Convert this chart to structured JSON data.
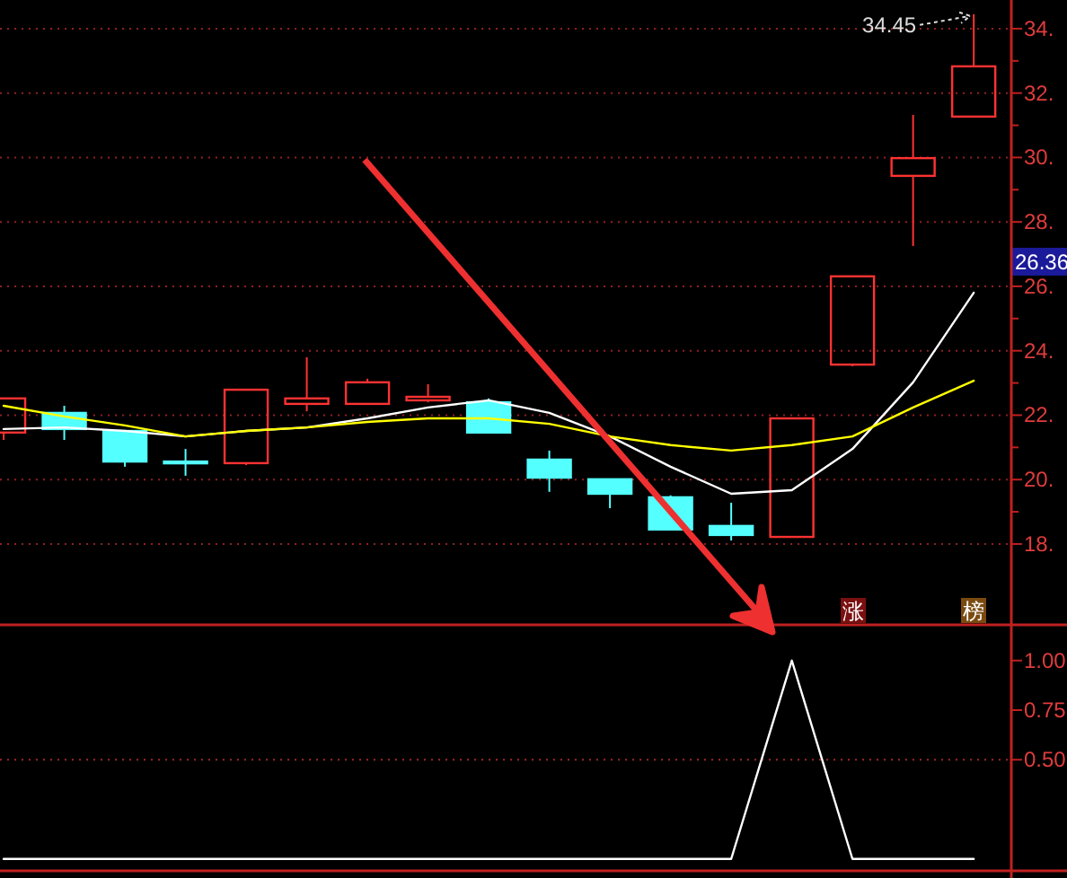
{
  "chart_data": [
    {
      "type": "candlestick",
      "categories": [
        null,
        null,
        null,
        null,
        null,
        null,
        null,
        null,
        null,
        null,
        null,
        null,
        null,
        null,
        null,
        null,
        null
      ],
      "ohlc": [
        [
          21.46,
          22.52,
          21.23,
          22.52
        ],
        [
          22.07,
          22.29,
          21.23,
          21.57
        ],
        [
          21.51,
          21.51,
          20.4,
          20.56
        ],
        [
          20.56,
          20.95,
          20.12,
          20.56
        ],
        [
          20.51,
          22.79,
          20.45,
          22.79
        ],
        [
          22.35,
          23.8,
          22.12,
          22.52
        ],
        [
          22.35,
          23.13,
          22.35,
          23.02
        ],
        [
          22.46,
          22.96,
          22.4,
          22.57
        ],
        [
          22.4,
          22.52,
          21.46,
          21.46
        ],
        [
          20.62,
          20.9,
          19.62,
          20.06
        ],
        [
          20.01,
          20.01,
          19.11,
          19.56
        ],
        [
          19.45,
          19.51,
          18.45,
          18.45
        ],
        [
          18.56,
          19.28,
          18.11,
          18.28
        ],
        [
          18.22,
          21.9,
          18.22,
          21.9
        ],
        [
          23.57,
          26.31,
          23.52,
          26.31
        ],
        [
          29.43,
          31.32,
          27.25,
          29.98
        ],
        [
          31.27,
          34.45,
          31.27,
          32.83
        ]
      ],
      "colors": [
        "#ff3232",
        "#54ffff",
        "#54ffff",
        "#54ffff",
        "#ff3232",
        "#ff3232",
        "#ff3232",
        "#ff3232",
        "#54ffff",
        "#54ffff",
        "#54ffff",
        "#54ffff",
        "#54ffff",
        "#ff3232",
        "#ff3232",
        "#ff3232",
        "#ff3232"
      ],
      "series": [
        {
          "type": "line",
          "color": "#ffffff",
          "values": [
            21.57,
            21.62,
            21.51,
            21.34,
            21.51,
            21.62,
            21.9,
            22.24,
            22.46,
            22.07,
            21.34,
            20.4,
            19.56,
            19.67,
            20.95,
            23.02,
            25.8
          ]
        },
        {
          "type": "line",
          "color": "#ffff00",
          "values": [
            22.29,
            21.96,
            21.68,
            21.34,
            21.51,
            21.62,
            21.79,
            21.9,
            21.9,
            21.73,
            21.34,
            21.07,
            20.9,
            21.07,
            21.34,
            22.24,
            23.07
          ]
        }
      ],
      "ylim": [
        15.49,
        34.89
      ],
      "yticks": [
        {
          "value": 18,
          "label": "18."
        },
        {
          "value": 19,
          "label": null
        },
        {
          "value": 20,
          "label": "20."
        },
        {
          "value": 21,
          "label": null
        },
        {
          "value": 22,
          "label": "22."
        },
        {
          "value": 23,
          "label": null
        },
        {
          "value": 24,
          "label": "24."
        },
        {
          "value": 25,
          "label": null
        },
        {
          "value": 26,
          "label": "26."
        },
        {
          "value": 27,
          "label": null
        },
        {
          "value": 28,
          "label": "28."
        },
        {
          "value": 29,
          "label": null
        },
        {
          "value": 30,
          "label": "30."
        },
        {
          "value": 31,
          "label": null
        },
        {
          "value": 32,
          "label": "32."
        },
        {
          "value": 33,
          "label": null
        },
        {
          "value": 34,
          "label": "34."
        }
      ],
      "grid": "y",
      "tick_labels": "y",
      "ref_lines": [
        {
          "axis": "y",
          "value": 26.36,
          "label": "26.36",
          "color": "#1a1a9a"
        }
      ],
      "annotations": [
        "34.45",
        "涨",
        "榜"
      ]
    },
    {
      "type": "line",
      "categories": [
        null,
        null,
        null,
        null,
        null,
        null,
        null,
        null,
        null,
        null,
        null,
        null,
        null,
        null,
        null,
        null,
        null
      ],
      "values": [
        0,
        0,
        0,
        0,
        0,
        0,
        0,
        0,
        0,
        0,
        0,
        0,
        0,
        1,
        0,
        0,
        0
      ],
      "color": "#ffffff",
      "ylim": [
        -0.06,
        1.18
      ],
      "yticks": [
        {
          "value": 0.5,
          "label": "0.50"
        },
        {
          "value": 0.75,
          "label": "0.75"
        },
        {
          "value": 1,
          "label": "1.00"
        }
      ],
      "ref_lines": [
        {
          "axis": "y",
          "value": 0.5,
          "color": "#a02828",
          "line_style": "dotted"
        }
      ],
      "tick_labels": "y"
    }
  ]
}
